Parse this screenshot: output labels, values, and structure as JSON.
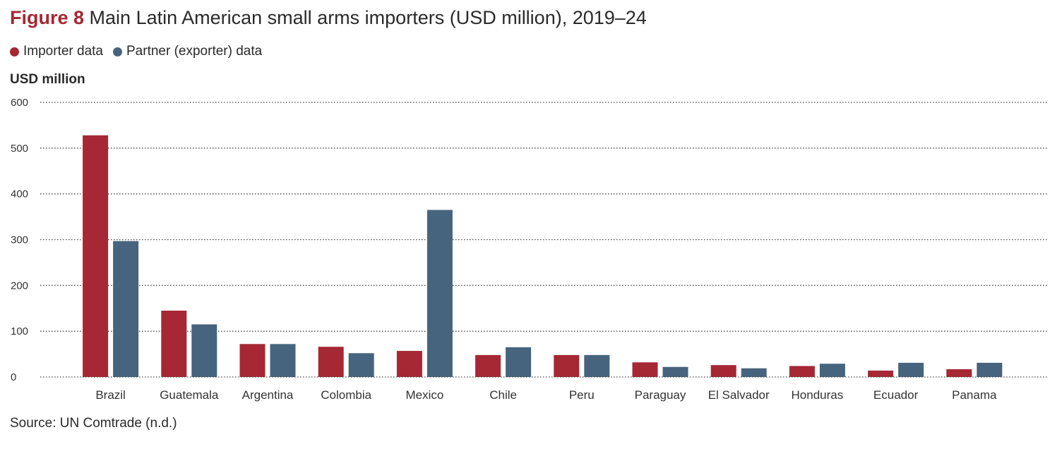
{
  "figure": {
    "label": "Figure 8",
    "title": "Main Latin American small arms importers (USD million), 2019–24",
    "unit_label": "USD million",
    "source": "Source: UN Comtrade (n.d.)"
  },
  "legend": [
    {
      "name": "Importer data",
      "color": "#a52834"
    },
    {
      "name": "Partner (exporter) data",
      "color": "#46647e"
    }
  ],
  "chart_data": {
    "type": "bar",
    "title": "Main Latin American small arms importers (USD million), 2019–24",
    "xlabel": "",
    "ylabel": "USD million",
    "ylim": [
      0,
      600
    ],
    "yticks": [
      0,
      100,
      200,
      300,
      400,
      500,
      600
    ],
    "grid": true,
    "legend_position": "top-left",
    "categories": [
      "Brazil",
      "Guatemala",
      "Argentina",
      "Colombia",
      "Mexico",
      "Chile",
      "Peru",
      "Paraguay",
      "El Salvador",
      "Honduras",
      "Ecuador",
      "Panama"
    ],
    "series": [
      {
        "name": "Importer data",
        "color": "#a52834",
        "values": [
          528,
          145,
          72,
          66,
          57,
          48,
          48,
          32,
          26,
          24,
          14,
          17
        ]
      },
      {
        "name": "Partner (exporter) data",
        "color": "#46647e",
        "values": [
          297,
          115,
          72,
          52,
          365,
          65,
          48,
          22,
          19,
          29,
          31,
          31
        ]
      }
    ]
  }
}
